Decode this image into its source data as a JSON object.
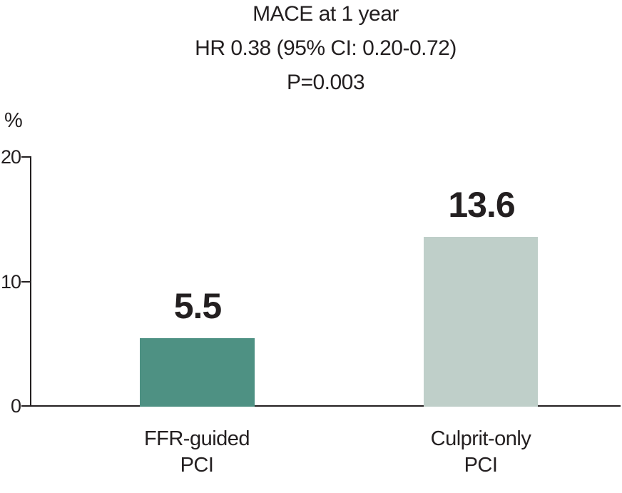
{
  "chart_data": {
    "type": "bar",
    "title": "MACE at 1 year",
    "subtitle": "HR 0.38 (95% CI: 0.20-0.72)",
    "p_value": "P=0.003",
    "ylabel": "%",
    "ylim": [
      0,
      20
    ],
    "yticks": [
      0,
      10,
      20
    ],
    "grid": false,
    "legend": "none",
    "categories": [
      [
        "FFR-guided",
        "PCI"
      ],
      [
        "Culprit-only",
        "PCI"
      ]
    ],
    "values": [
      5.5,
      13.6
    ],
    "value_labels": [
      "5.5",
      "13.6"
    ],
    "bar_colors": [
      "#4e9183",
      "#bfcfc9"
    ],
    "axis_color": "#231f20",
    "text_color": "#231f20",
    "background_color": "#ffffff"
  }
}
